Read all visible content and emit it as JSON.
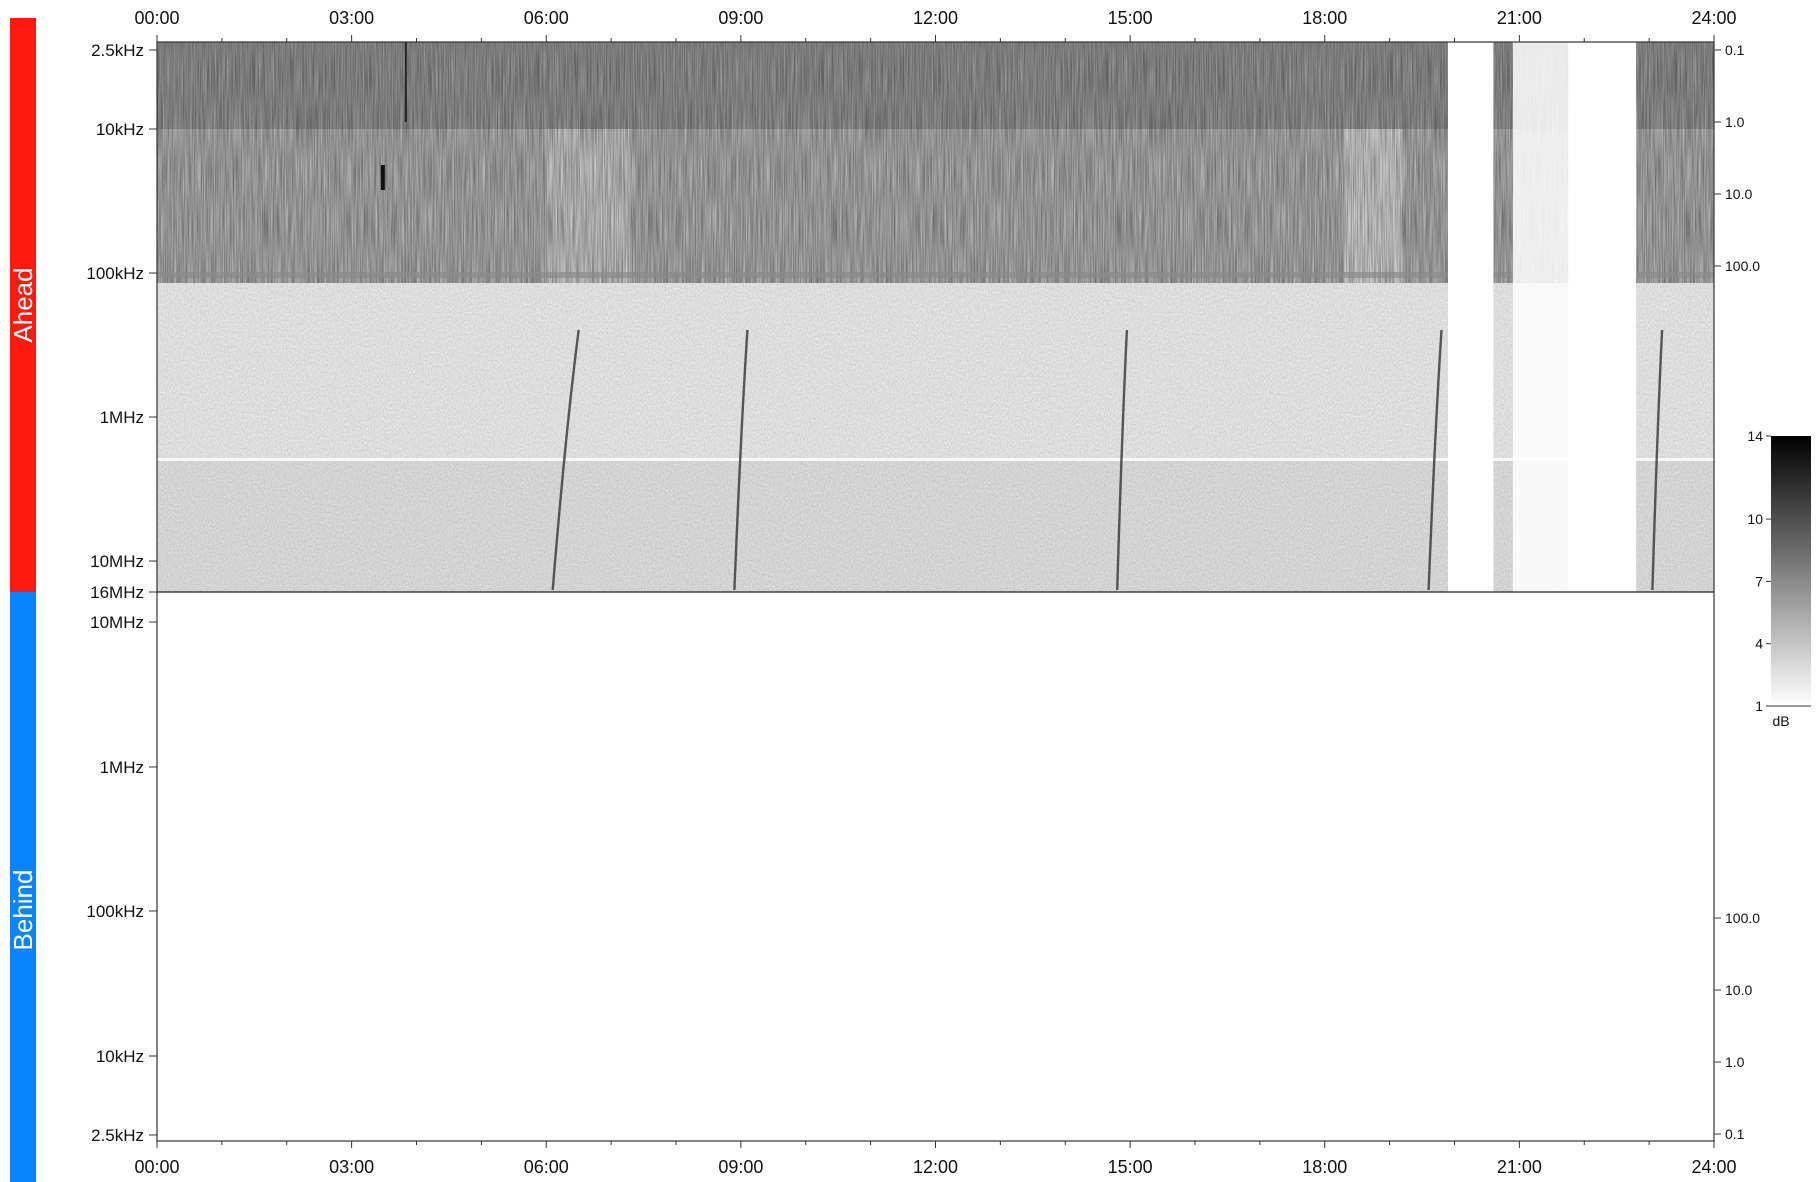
{
  "chart_data": {
    "type": "heatmap",
    "x_axis": {
      "tick_labels": [
        "00:00",
        "03:00",
        "06:00",
        "09:00",
        "12:00",
        "15:00",
        "18:00",
        "21:00",
        "24:00"
      ],
      "range": [
        "00:00",
        "24:00"
      ],
      "minor_interval_hours": 1
    },
    "panels": [
      {
        "id": "ahead",
        "side_label": "Ahead",
        "side_color": "#ff1a0d",
        "y_scale": "log",
        "y_range": [
          "2.5kHz",
          "16MHz"
        ],
        "y_ticks": [
          "2.5kHz",
          "10kHz",
          "100kHz",
          "1MHz",
          "10MHz",
          "16MHz"
        ],
        "right_ticks": [
          "0.1",
          "1.0",
          "10.0",
          "100.0"
        ],
        "has_data": true,
        "data_gaps_hours": [
          [
            19.9,
            20.6
          ],
          [
            21.75,
            22.8
          ]
        ],
        "bursts": [
          {
            "start_hour": 6.1,
            "end_hour": 6.5
          },
          {
            "start_hour": 8.9,
            "end_hour": 9.1
          },
          {
            "start_hour": 14.8,
            "end_hour": 14.95
          },
          {
            "start_hour": 19.6,
            "end_hour": 19.8
          },
          {
            "start_hour": 23.05,
            "end_hour": 23.2
          }
        ]
      },
      {
        "id": "behind",
        "side_label": "Behind",
        "side_color": "#0a84ff",
        "y_scale": "log",
        "y_range": [
          "10MHz",
          "2.5kHz"
        ],
        "y_ticks": [
          "10MHz",
          "1MHz",
          "100kHz",
          "10kHz",
          "2.5kHz"
        ],
        "right_ticks": [
          "100.0",
          "10.0",
          "1.0",
          "0.1"
        ],
        "has_data": false
      }
    ],
    "colorbar": {
      "ticks": [
        "14",
        "10",
        "7",
        "4",
        "1"
      ],
      "unit_label": "dB",
      "colormap": "gray",
      "range": [
        1,
        14
      ]
    }
  }
}
